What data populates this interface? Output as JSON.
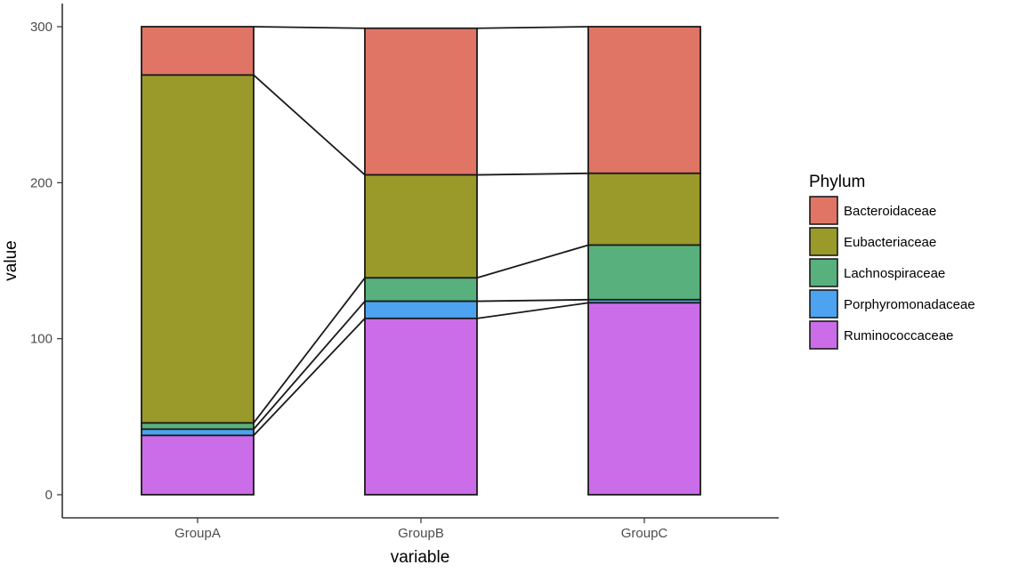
{
  "chart_data": {
    "type": "bar",
    "stacked": true,
    "alluvial_connectors": true,
    "categories": [
      "GroupA",
      "GroupB",
      "GroupC"
    ],
    "xlabel": "variable",
    "ylabel": "value",
    "ylim": [
      0,
      300
    ],
    "yticks": [
      0,
      100,
      200,
      300
    ],
    "grid": false,
    "legend": {
      "title": "Phylum",
      "position": "right"
    },
    "series": [
      {
        "name": "Bacteroidaceae",
        "color": "#E07565",
        "values": [
          31,
          94,
          94
        ]
      },
      {
        "name": "Eubacteriaceae",
        "color": "#999A2A",
        "values": [
          223,
          66,
          46
        ]
      },
      {
        "name": "Lachnospiraceae",
        "color": "#58B17C",
        "values": [
          4,
          15,
          35
        ]
      },
      {
        "name": "Porphyromonadaceae",
        "color": "#4DA3EF",
        "values": [
          4,
          11,
          2
        ]
      },
      {
        "name": "Ruminococcaceae",
        "color": "#CB6DE8",
        "values": [
          38,
          113,
          123
        ]
      }
    ]
  }
}
